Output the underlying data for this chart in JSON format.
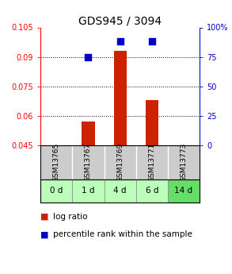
{
  "title": "GDS945 / 3094",
  "samples": [
    "GSM13765",
    "GSM13767",
    "GSM13769",
    "GSM13771",
    "GSM13773"
  ],
  "time_labels": [
    "0 d",
    "1 d",
    "4 d",
    "6 d",
    "14 d"
  ],
  "log_ratio": [
    0.0,
    0.057,
    0.093,
    0.068,
    0.0
  ],
  "log_ratio_base": 0.045,
  "percentile_rank": [
    null,
    75.0,
    88.0,
    88.0,
    null
  ],
  "left_ylim": [
    0.045,
    0.105
  ],
  "left_yticks": [
    0.045,
    0.06,
    0.075,
    0.09,
    0.105
  ],
  "right_ylim": [
    0,
    100
  ],
  "right_yticks": [
    0,
    25,
    50,
    75,
    100
  ],
  "right_yticklabels": [
    "0",
    "25",
    "50",
    "75",
    "100%"
  ],
  "bar_color": "#cc2200",
  "dot_color": "#0000cc",
  "grid_color": "#000000",
  "bar_width": 0.4,
  "dot_size": 30,
  "label_log_ratio": "log ratio",
  "label_percentile": "percentile rank within the sample",
  "time_colors": [
    "#bbffbb",
    "#bbffbb",
    "#bbffbb",
    "#bbffbb",
    "#66dd66"
  ],
  "sample_row_color": "#cccccc",
  "bg_color": "#ffffff",
  "title_fontsize": 10,
  "tick_fontsize": 7,
  "legend_fontsize": 7.5
}
